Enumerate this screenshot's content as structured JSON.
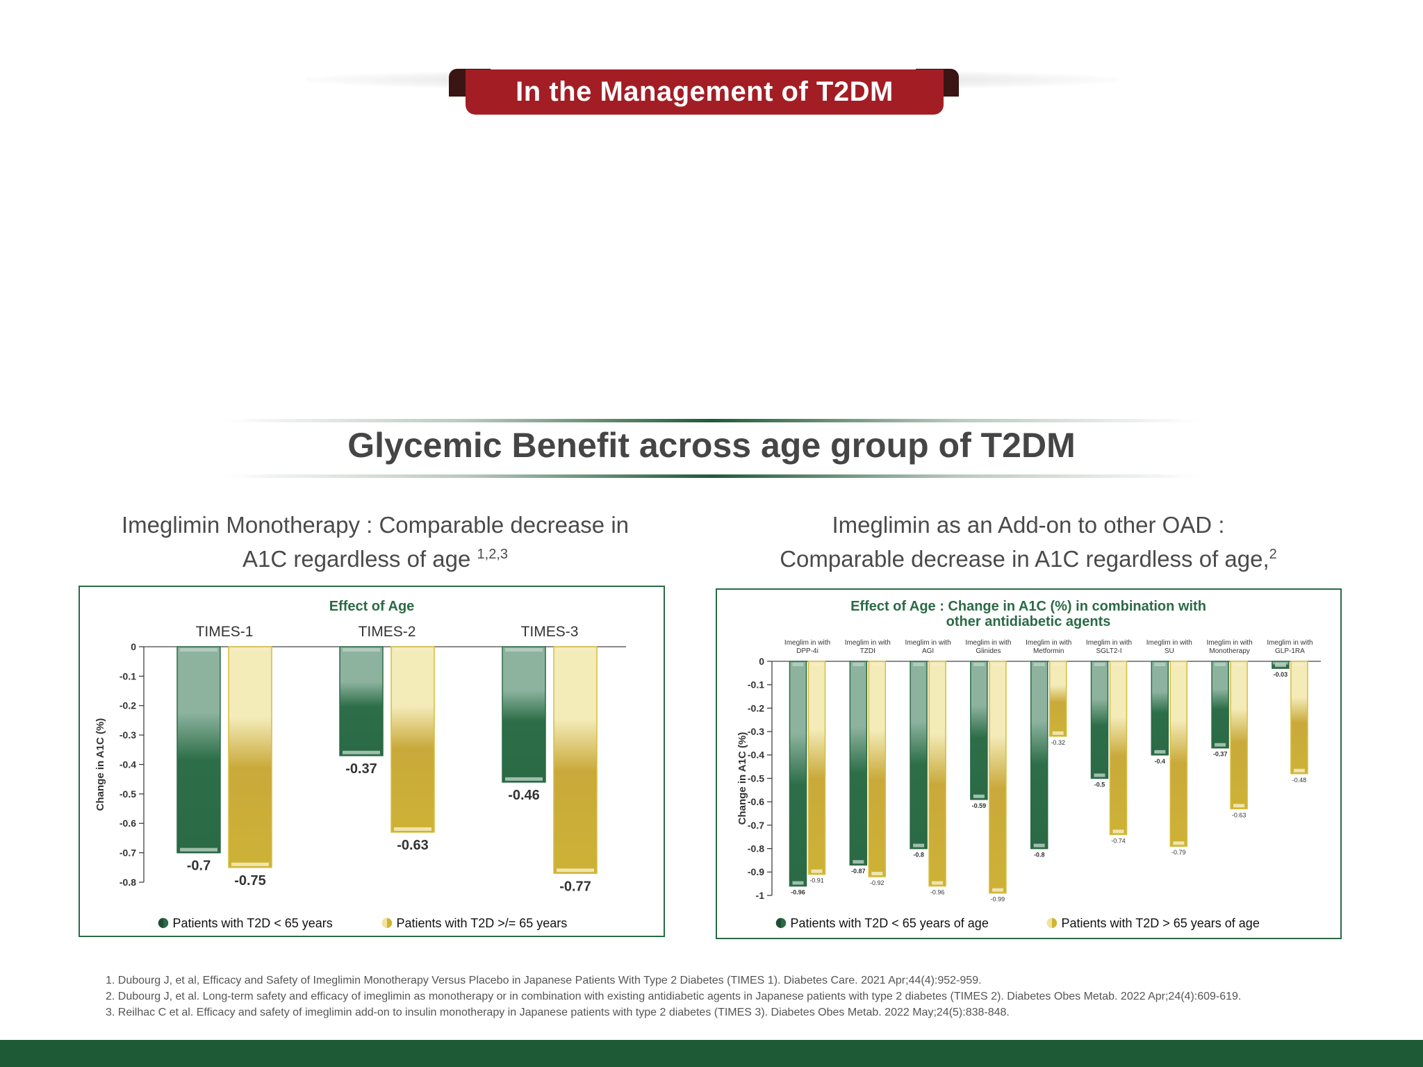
{
  "banner": {
    "title": "In the Management of T2DM"
  },
  "main_title": "Glycemic Benefit across age group of T2DM",
  "left": {
    "subtitle_line1": "Imeglimin Monotherapy : Comparable decrease in",
    "subtitle_line2": "A1C regardless of age",
    "subtitle_sup": "1,2,3"
  },
  "right": {
    "subtitle_line1": "Imeglimin as an Add-on to other OAD :",
    "subtitle_line2": "Comparable decrease in A1C regardless of age,",
    "subtitle_sup": "2"
  },
  "chart_data": [
    {
      "type": "bar",
      "title": "Effect of Age",
      "ylabel": "Change in A1C (%)",
      "ylim": [
        -0.8,
        0
      ],
      "yticks": [
        0,
        -0.1,
        -0.2,
        -0.3,
        -0.4,
        -0.5,
        -0.6,
        -0.7,
        -0.8
      ],
      "categories": [
        "TIMES-1",
        "TIMES-2",
        "TIMES-3"
      ],
      "series": [
        {
          "name": "Patients with T2D < 65 years",
          "values": [
            -0.7,
            -0.37,
            -0.46
          ],
          "color": "#2a6a45"
        },
        {
          "name": "Patients with T2D >/= 65 years",
          "values": [
            -0.75,
            -0.63,
            -0.77
          ],
          "color": "#d2b433"
        }
      ],
      "legend_position": "bottom"
    },
    {
      "type": "bar",
      "title": "Effect of Age : Change in A1C (%) in combination with",
      "title_line2": "other antidiabetic agents",
      "ylabel": "Change in A1C (%)",
      "ylim": [
        -1,
        0
      ],
      "yticks": [
        0,
        -0.1,
        -0.2,
        -0.3,
        -0.4,
        -0.5,
        -0.6,
        -0.7,
        -0.8,
        -0.9,
        -1
      ],
      "categories": [
        [
          "Imeglim in with",
          "DPP-4i"
        ],
        [
          "Imeglim in with",
          "TZDI"
        ],
        [
          "Imeglim in with",
          "AGI"
        ],
        [
          "Imeglim in with",
          "Glinides"
        ],
        [
          "Imeglim in with",
          "Metformin"
        ],
        [
          "Imeglim in with",
          "SGLT2-I"
        ],
        [
          "Imeglim in with",
          "SU"
        ],
        [
          "Imeglim in with",
          "Monotherapy"
        ],
        [
          "Imeglim in with",
          "GLP-1RA"
        ]
      ],
      "series": [
        {
          "name": "Patients with T2D < 65 years of age",
          "values": [
            -0.96,
            -0.87,
            -0.8,
            -0.59,
            -0.8,
            -0.5,
            -0.4,
            -0.37,
            -0.03
          ],
          "color": "#2a6a45"
        },
        {
          "name": "Patients with T2D > 65 years of age",
          "values": [
            -0.91,
            -0.92,
            -0.96,
            -0.99,
            -0.32,
            -0.74,
            -0.79,
            -0.63,
            -0.48
          ],
          "color": "#d2b433"
        }
      ],
      "legend_position": "bottom"
    }
  ],
  "footnotes": [
    "1. Dubourg J, et al,  Efficacy and Safety of Imeglimin Monotherapy Versus Placebo in Japanese Patients With Type 2 Diabetes (TIMES 1). Diabetes Care. 2021 Apr;44(4):952-959.",
    "2. Dubourg J, et al. Long-term safety and efficacy of imeglimin as monotherapy or in combination with existing antidiabetic agents in Japanese patients with type 2 diabetes (TIMES 2). Diabetes Obes Metab. 2022 Apr;24(4):609-619.",
    "3. Reilhac C et al. Efficacy and safety of imeglimin add-on to insulin monotherapy in Japanese patients with type 2 diabetes (TIMES 3).  Diabetes Obes Metab. 2022 May;24(5):838-848."
  ]
}
